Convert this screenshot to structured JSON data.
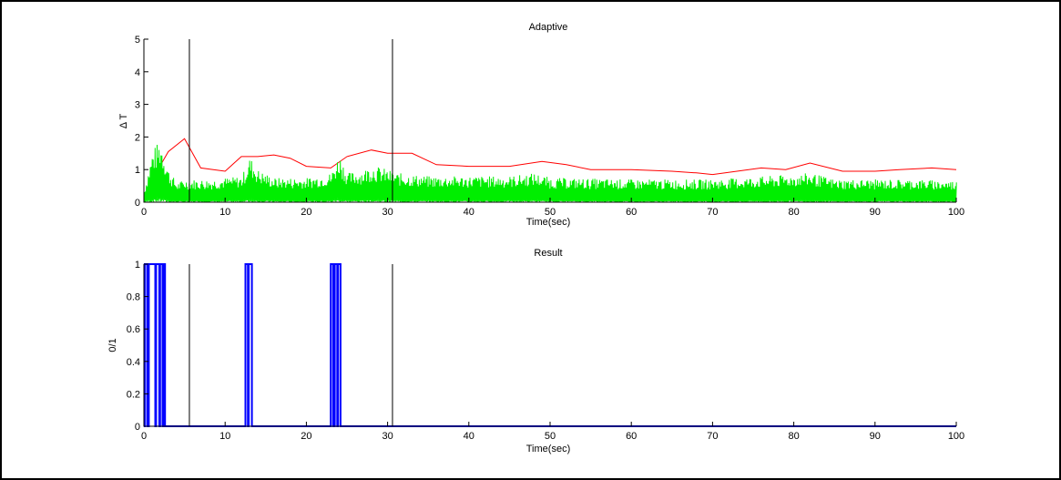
{
  "chart_data": [
    {
      "type": "line",
      "title": "Adaptive",
      "xlabel": "Time(sec)",
      "ylabel": "Δ T",
      "xlim": [
        0,
        100
      ],
      "ylim": [
        0,
        5
      ],
      "xticks": [
        0,
        10,
        20,
        30,
        40,
        50,
        60,
        70,
        80,
        90,
        100
      ],
      "yticks": [
        0,
        1,
        2,
        3,
        4,
        5
      ],
      "markers_x": [
        5.6,
        30.6
      ],
      "series": [
        {
          "color": "#ff0000",
          "x": [
            0,
            1.5,
            3,
            5,
            7,
            10,
            12,
            14,
            16,
            18,
            20,
            23,
            25,
            28,
            30,
            33,
            36,
            40,
            45,
            49,
            52,
            55,
            60,
            65,
            68,
            70,
            73,
            76,
            79,
            82,
            86,
            90,
            93,
            97,
            100
          ],
          "y": [
            0.1,
            0.9,
            1.55,
            1.95,
            1.05,
            0.95,
            1.4,
            1.4,
            1.45,
            1.35,
            1.1,
            1.05,
            1.4,
            1.6,
            1.5,
            1.5,
            1.15,
            1.1,
            1.1,
            1.25,
            1.15,
            1.0,
            1.0,
            0.95,
            0.9,
            0.85,
            0.95,
            1.05,
            1.0,
            1.2,
            0.95,
            0.95,
            1.0,
            1.05,
            1.0
          ]
        },
        {
          "color": "#00ee00",
          "style": "dense-signal",
          "envelope_x": [
            0,
            1,
            2,
            3,
            4,
            5,
            8,
            12,
            13,
            14,
            16,
            20,
            23,
            24,
            25,
            27,
            28,
            30,
            31,
            35,
            45,
            48,
            50,
            60,
            70,
            80,
            82,
            85,
            90,
            95,
            100
          ],
          "envelope_y": [
            0.4,
            1.6,
            1.95,
            1.0,
            0.6,
            0.7,
            0.7,
            0.8,
            1.4,
            1.0,
            0.75,
            0.75,
            0.9,
            1.5,
            0.9,
            1.0,
            1.15,
            1.0,
            0.9,
            0.8,
            0.8,
            0.9,
            0.75,
            0.7,
            0.7,
            0.85,
            0.9,
            0.7,
            0.7,
            0.7,
            0.65
          ]
        }
      ]
    },
    {
      "type": "line",
      "title": "Result",
      "xlabel": "Time(sec)",
      "ylabel": "0/1",
      "xlim": [
        0,
        100
      ],
      "ylim": [
        0,
        1
      ],
      "xticks": [
        0,
        10,
        20,
        30,
        40,
        50,
        60,
        70,
        80,
        90,
        100
      ],
      "yticks": [
        0,
        0.2,
        0.4,
        0.6,
        0.8,
        1
      ],
      "markers_x": [
        5.6,
        30.6
      ],
      "series": [
        {
          "color": "#0000ff",
          "style": "binary",
          "on_intervals": [
            [
              0.1,
              0.4
            ],
            [
              0.6,
              1.4
            ],
            [
              1.5,
              1.9
            ],
            [
              2.0,
              2.3
            ],
            [
              2.4,
              2.6
            ],
            [
              12.5,
              12.8
            ],
            [
              12.9,
              13.3
            ],
            [
              23.0,
              23.3
            ],
            [
              23.5,
              23.8
            ],
            [
              23.9,
              24.2
            ]
          ]
        }
      ]
    }
  ]
}
